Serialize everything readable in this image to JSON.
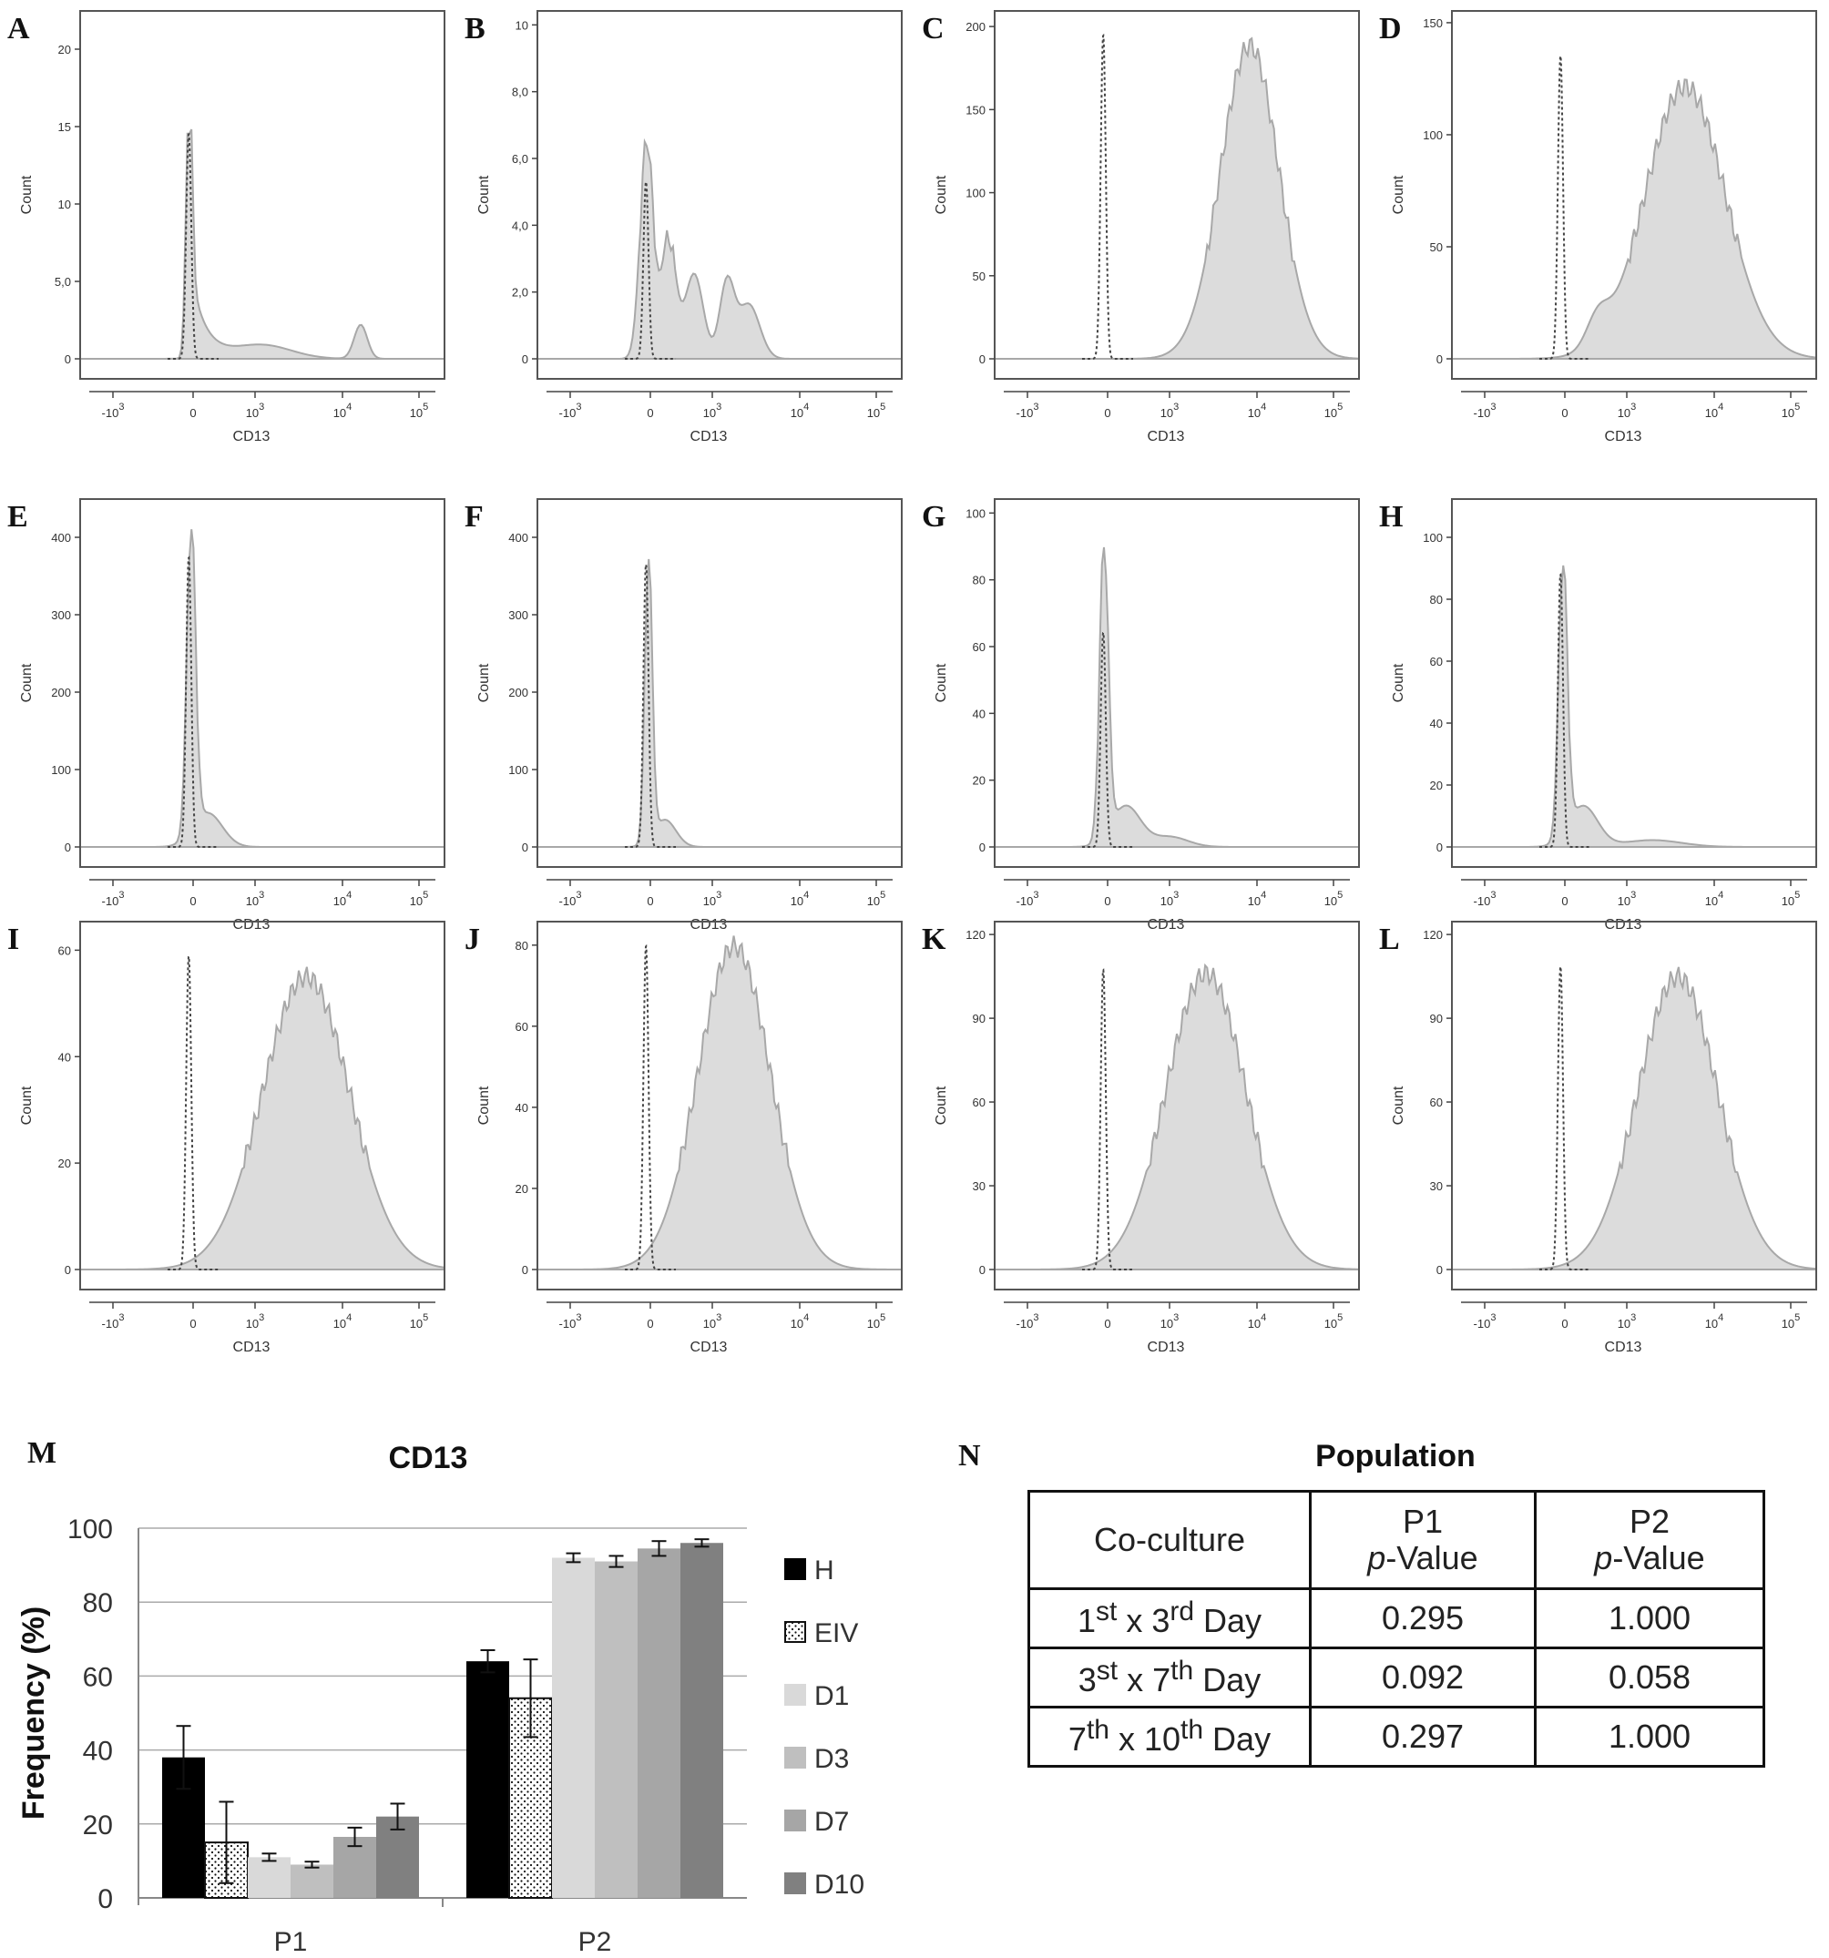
{
  "histograms": {
    "x_axis_label": "CD13",
    "y_axis_label": "Count",
    "x_tick_labels": [
      {
        "base": "-10",
        "exp": "3"
      },
      {
        "base": "0",
        "exp": ""
      },
      {
        "base": "10",
        "exp": "3"
      },
      {
        "base": "10",
        "exp": "4"
      },
      {
        "base": "10",
        "exp": "5"
      }
    ],
    "panels": [
      {
        "letter": "A",
        "ymax": 22,
        "yticks": [
          "0",
          "5,0",
          "10",
          "15",
          "20"
        ],
        "ytick_values": [
          0,
          5,
          10,
          15,
          20
        ]
      },
      {
        "letter": "B",
        "ymax": 10.2,
        "yticks": [
          "0",
          "2,0",
          "4,0",
          "6,0",
          "8,0",
          "10"
        ],
        "ytick_values": [
          0,
          2,
          4,
          6,
          8,
          10
        ]
      },
      {
        "letter": "C",
        "ymax": 205,
        "yticks": [
          "0",
          "50",
          "100",
          "150",
          "200"
        ],
        "ytick_values": [
          0,
          50,
          100,
          150,
          200
        ]
      },
      {
        "letter": "D",
        "ymax": 152,
        "yticks": [
          "0",
          "50",
          "100",
          "150"
        ],
        "ytick_values": [
          0,
          50,
          100,
          150
        ]
      },
      {
        "letter": "E",
        "ymax": 440,
        "yticks": [
          "0",
          "100",
          "200",
          "300",
          "400"
        ],
        "ytick_values": [
          0,
          100,
          200,
          300,
          400
        ]
      },
      {
        "letter": "F",
        "ymax": 440,
        "yticks": [
          "0",
          "100",
          "200",
          "300",
          "400"
        ],
        "ytick_values": [
          0,
          100,
          200,
          300,
          400
        ]
      },
      {
        "letter": "G",
        "ymax": 102,
        "yticks": [
          "0",
          "20",
          "40",
          "60",
          "80",
          "100"
        ],
        "ytick_values": [
          0,
          20,
          40,
          60,
          80,
          100
        ]
      },
      {
        "letter": "H",
        "ymax": 110,
        "yticks": [
          "0",
          "20",
          "40",
          "60",
          "80",
          "100"
        ],
        "ytick_values": [
          0,
          20,
          40,
          60,
          80,
          100
        ]
      },
      {
        "letter": "I",
        "ymax": 64,
        "yticks": [
          "0",
          "20",
          "40",
          "60"
        ],
        "ytick_values": [
          0,
          20,
          40,
          60
        ]
      },
      {
        "letter": "J",
        "ymax": 84,
        "yticks": [
          "0",
          "20",
          "40",
          "60",
          "80"
        ],
        "ytick_values": [
          0,
          20,
          40,
          60,
          80
        ]
      },
      {
        "letter": "K",
        "ymax": 122,
        "yticks": [
          "0",
          "30",
          "60",
          "90",
          "120"
        ],
        "ytick_values": [
          0,
          30,
          60,
          90,
          120
        ]
      },
      {
        "letter": "L",
        "ymax": 122,
        "yticks": [
          "0",
          "30",
          "60",
          "90",
          "120"
        ],
        "ytick_values": [
          0,
          30,
          60,
          90,
          120
        ]
      }
    ]
  },
  "chart_data": {
    "type": "bar",
    "panel_letter": "M",
    "title": "CD13",
    "ylabel": "Frequency (%)",
    "xlabel": "",
    "ylim": [
      0,
      100
    ],
    "yticks": [
      0,
      20,
      40,
      60,
      80,
      100
    ],
    "categories": [
      "P1",
      "P2"
    ],
    "grid": true,
    "legend": "right",
    "series": [
      {
        "name": "H",
        "color": "#000000",
        "pattern": "solid",
        "values": [
          38,
          64
        ],
        "errors": [
          8.5,
          3
        ]
      },
      {
        "name": "EIV",
        "color": "#ffffff",
        "pattern": "dots",
        "values": [
          15,
          54
        ],
        "errors": [
          11,
          10.5
        ]
      },
      {
        "name": "D1",
        "color": "#d9d9d9",
        "pattern": "solid",
        "values": [
          11,
          92
        ],
        "errors": [
          1,
          1.2
        ]
      },
      {
        "name": "D3",
        "color": "#bfbfbf",
        "pattern": "solid",
        "values": [
          9,
          91
        ],
        "errors": [
          0.8,
          1.5
        ]
      },
      {
        "name": "D7",
        "color": "#a6a6a6",
        "pattern": "solid",
        "values": [
          16.5,
          94.5
        ],
        "errors": [
          2.5,
          2
        ]
      },
      {
        "name": "D10",
        "color": "#808080",
        "pattern": "solid",
        "values": [
          22,
          96
        ],
        "errors": [
          3.5,
          1
        ]
      }
    ]
  },
  "table": {
    "panel_letter": "N",
    "title": "Population",
    "header": {
      "c0": "Co-culture",
      "c1_line1": "P1",
      "c1_line2_italic": "p",
      "c1_line2_rest": "-Value",
      "c2_line1": "P2",
      "c2_line2_italic": "p",
      "c2_line2_rest": "-Value"
    },
    "rows": [
      {
        "n1": "1",
        "s1": "st",
        "mid": " x 3",
        "s2": "rd",
        "tail": " Day",
        "p1": "0.295",
        "p2": "1.000"
      },
      {
        "n1": "3",
        "s1": "st",
        "mid": " x 7",
        "s2": "th",
        "tail": " Day",
        "p1": "0.092",
        "p2": "0.058"
      },
      {
        "n1": "7",
        "s1": "th",
        "mid": " x 10",
        "s2": "th",
        "tail": " Day",
        "p1": "0.297",
        "p2": "1.000"
      }
    ]
  }
}
